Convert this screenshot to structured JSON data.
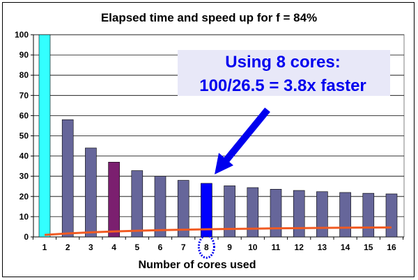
{
  "chart_data": {
    "type": "bar",
    "title": "Elapsed time and speed up for f = 84%",
    "xlabel": "Number of cores used",
    "ylabel": "",
    "ylim": [
      0,
      100
    ],
    "yticks": [
      0,
      10,
      20,
      30,
      40,
      50,
      60,
      70,
      80,
      90,
      100
    ],
    "grid": true,
    "categories": [
      "1",
      "2",
      "3",
      "4",
      "5",
      "6",
      "7",
      "8",
      "9",
      "10",
      "11",
      "12",
      "13",
      "14",
      "15",
      "16"
    ],
    "values": [
      100,
      58.0,
      44.0,
      37.0,
      32.8,
      30.0,
      28.0,
      26.5,
      25.3,
      24.4,
      23.6,
      23.0,
      22.4,
      22.0,
      21.6,
      21.3
    ],
    "bar_colors": {
      "default": "#66669a",
      "highlight_1": "#33ffff",
      "highlight_4": "#7b1f6f",
      "highlight_8": "#0000ff"
    },
    "speedup_line": {
      "color": "#f05a22",
      "values": [
        1.0,
        1.72,
        2.27,
        2.7,
        3.05,
        3.33,
        3.57,
        3.77,
        3.95,
        4.1,
        4.24,
        4.35,
        4.46,
        4.55,
        4.63,
        4.69
      ]
    },
    "annotation": {
      "line1": "Using 8 cores:",
      "line2": "100/26.5 = 3.8x faster",
      "text_color": "#0000ee",
      "box_color": "#e8e8f8",
      "points_to": "8"
    }
  }
}
